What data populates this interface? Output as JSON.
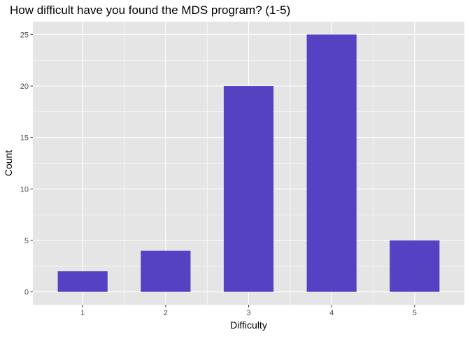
{
  "chart_data": {
    "type": "bar",
    "title": "How difficult have you found the MDS program? (1-5)",
    "xlabel": "Difficulty",
    "ylabel": "Count",
    "categories": [
      "1",
      "2",
      "3",
      "4",
      "5"
    ],
    "values": [
      2,
      4,
      20,
      25,
      5
    ],
    "ylim": [
      0,
      25
    ],
    "yticks": [
      0,
      5,
      10,
      15,
      20,
      25
    ],
    "grid": true,
    "legend": "none",
    "colors": {
      "bar": "#5542c3",
      "panel_background": "#e5e5e5",
      "grid": "#ffffff",
      "tick_text": "#4d4d4d"
    }
  }
}
